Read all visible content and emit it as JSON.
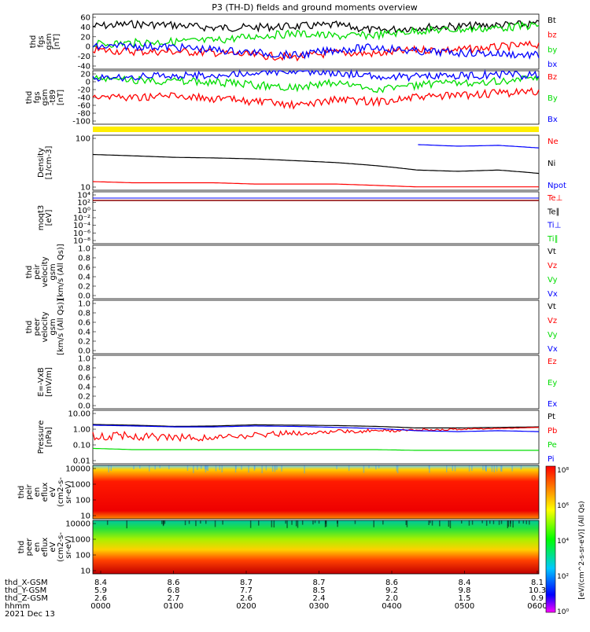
{
  "title": "P3 (TH-D) fields and ground moments overview",
  "colors": {
    "black": "#000000",
    "red": "#ff0000",
    "green": "#00dd00",
    "blue": "#0000ff",
    "yellow": "#ffee00"
  },
  "chart_data": [
    {
      "type": "line",
      "panel": "fgs",
      "ylabel": [
        "thd",
        "fgs",
        "gsm",
        "[nT]"
      ],
      "ylim": [
        -40,
        60
      ],
      "yticks": [
        "60",
        "40",
        "20",
        "0",
        "-20",
        "-40"
      ],
      "series": [
        {
          "name": "Bt",
          "color": "black",
          "values": [
            38,
            42,
            40,
            35,
            36,
            38,
            40,
            30,
            36,
            38,
            40,
            42
          ]
        },
        {
          "name": "bz",
          "color": "red",
          "values": [
            -5,
            -8,
            -8,
            -10,
            -15,
            -18,
            -10,
            -12,
            -5,
            -5,
            0,
            5
          ]
        },
        {
          "name": "by",
          "color": "green",
          "values": [
            5,
            8,
            10,
            12,
            20,
            25,
            20,
            22,
            30,
            32,
            35,
            40
          ]
        },
        {
          "name": "bx",
          "color": "blue",
          "values": [
            0,
            2,
            0,
            -5,
            -10,
            -15,
            -5,
            0,
            -8,
            -10,
            -12,
            -15
          ]
        }
      ]
    },
    {
      "type": "line",
      "panel": "fgs_gsm_t89",
      "ylabel": [
        "thd",
        "fgs",
        "gsm",
        "-t89",
        "[nT]"
      ],
      "ylim": [
        -110,
        20
      ],
      "yticks": [
        "20",
        "0",
        "-20",
        "-40",
        "-60",
        "-80",
        "-100"
      ],
      "series": [
        {
          "name": "Bz",
          "color": "red",
          "values": [
            -40,
            -45,
            -40,
            -48,
            -55,
            -65,
            -50,
            -55,
            -45,
            -40,
            -35,
            -30
          ]
        },
        {
          "name": "By",
          "color": "green",
          "values": [
            0,
            -2,
            -5,
            -8,
            -15,
            -20,
            -10,
            -25,
            -15,
            -10,
            -5,
            0
          ]
        },
        {
          "name": "Bx",
          "color": "blue",
          "values": [
            2,
            5,
            8,
            8,
            15,
            20,
            15,
            5,
            5,
            8,
            10,
            8
          ]
        }
      ]
    },
    {
      "type": "line",
      "panel": "density",
      "ylabel": [
        "Density",
        "[1/cm-3]"
      ],
      "ylim_log": [
        10,
        200
      ],
      "yticks": [
        "100",
        "10"
      ],
      "series": [
        {
          "name": "Ne",
          "color": "red",
          "values": [
            16,
            15,
            15,
            15,
            14,
            14,
            14,
            13,
            12,
            12,
            12,
            12
          ]
        },
        {
          "name": "Ni",
          "color": "black",
          "values": [
            70,
            65,
            60,
            58,
            55,
            50,
            45,
            38,
            30,
            28,
            30,
            25
          ]
        },
        {
          "name": "Npot",
          "color": "blue",
          "values": [
            null,
            null,
            null,
            null,
            null,
            null,
            null,
            null,
            120,
            110,
            115,
            100
          ]
        }
      ]
    },
    {
      "type": "line",
      "panel": "temperature",
      "ylabel": [
        "moqt3",
        "[eV]"
      ],
      "yticks": [
        "10⁴",
        "10²",
        "10⁰",
        "10⁻²",
        "10⁻⁴",
        "10⁻⁶",
        "10⁻⁸"
      ],
      "series": [
        {
          "name": "Te⊥",
          "color": "red"
        },
        {
          "name": "Te∥",
          "color": "black"
        },
        {
          "name": "Ti⊥",
          "color": "blue"
        },
        {
          "name": "Ti∥",
          "color": "green"
        }
      ]
    },
    {
      "type": "line",
      "panel": "peir_velocity",
      "ylabel": [
        "thd",
        "peir",
        "velocity",
        "gsm",
        "[km/s (All Qs)]"
      ],
      "ylim": [
        0,
        1
      ],
      "yticks": [
        "1.0",
        "0.8",
        "0.6",
        "0.4",
        "0.2",
        "0.0"
      ],
      "series": [
        {
          "name": "Vt",
          "color": "black"
        },
        {
          "name": "Vz",
          "color": "red"
        },
        {
          "name": "Vy",
          "color": "green"
        },
        {
          "name": "Vx",
          "color": "blue"
        }
      ]
    },
    {
      "type": "line",
      "panel": "peer_velocity",
      "ylabel": [
        "thd",
        "peer",
        "velocity",
        "gsm",
        "[km/s (All Qs)]"
      ],
      "ylim": [
        0,
        1
      ],
      "yticks": [
        "1.0",
        "0.8",
        "0.6",
        "0.4",
        "0.2",
        "0.0"
      ],
      "series": [
        {
          "name": "Vt",
          "color": "black"
        },
        {
          "name": "Vz",
          "color": "red"
        },
        {
          "name": "Vy",
          "color": "green"
        },
        {
          "name": "Vx",
          "color": "blue"
        }
      ]
    },
    {
      "type": "line",
      "panel": "efield",
      "ylabel": [
        "E=-VxB",
        "[mV/m]"
      ],
      "ylim": [
        0,
        1
      ],
      "yticks": [
        "1.0",
        "0.8",
        "0.6",
        "0.4",
        "0.2",
        "0.0"
      ],
      "series": [
        {
          "name": "Ez",
          "color": "red"
        },
        {
          "name": "Ey",
          "color": "green"
        },
        {
          "name": "Ex",
          "color": "blue"
        }
      ]
    },
    {
      "type": "line",
      "panel": "pressure",
      "ylabel": [
        "Pressure",
        "[nPa]"
      ],
      "yticks": [
        "10.00",
        "1.00",
        "0.10",
        "0.01"
      ],
      "series": [
        {
          "name": "Pt",
          "color": "black",
          "values": [
            2.0,
            1.8,
            1.5,
            1.6,
            1.9,
            1.8,
            1.7,
            1.5,
            1.2,
            1.2,
            1.3,
            1.4
          ]
        },
        {
          "name": "Pb",
          "color": "red",
          "values": [
            0.4,
            0.35,
            0.3,
            0.3,
            0.4,
            0.6,
            0.7,
            0.8,
            0.9,
            1.0,
            1.1,
            1.3
          ]
        },
        {
          "name": "Pe",
          "color": "green",
          "values": [
            0.06,
            0.05,
            0.05,
            0.05,
            0.05,
            0.05,
            0.05,
            0.05,
            0.045,
            0.045,
            0.045,
            0.045
          ]
        },
        {
          "name": "Pi",
          "color": "blue",
          "values": [
            1.8,
            1.6,
            1.4,
            1.4,
            1.6,
            1.5,
            1.3,
            1.1,
            0.8,
            0.7,
            0.8,
            0.7
          ]
        }
      ]
    },
    {
      "type": "heatmap",
      "panel": "peir_en_eflux",
      "ylabel": [
        "thd",
        "peir",
        "en",
        "eflux",
        "eV",
        "(cm2-s-",
        "sr-eV)"
      ],
      "yticks": [
        "10000",
        "1000",
        "100",
        "10"
      ]
    },
    {
      "type": "heatmap",
      "panel": "peer_en_eflux",
      "ylabel": [
        "thd",
        "peer",
        "en",
        "eflux",
        "eV",
        "(cm2-s-",
        "sr-eV)"
      ],
      "yticks": [
        "10000",
        "1000",
        "100",
        "10"
      ]
    }
  ],
  "colorbar": {
    "label": "[eV/(cm^2-s-sr-eV)] (All Qs)",
    "ticks": [
      "10⁸",
      "10⁶",
      "10⁴",
      "10²",
      "10⁰"
    ]
  },
  "xaxis": {
    "rows": [
      {
        "label": "thd_X-GSM",
        "values": [
          "8.4",
          "8.6",
          "8.7",
          "8.7",
          "8.6",
          "8.4",
          "8.1"
        ]
      },
      {
        "label": "thd_Y-GSM",
        "values": [
          "5.9",
          "6.8",
          "7.7",
          "8.5",
          "9.2",
          "9.8",
          "10.3"
        ]
      },
      {
        "label": "thd_Z-GSM",
        "values": [
          "2.6",
          "2.7",
          "2.6",
          "2.4",
          "2.0",
          "1.5",
          "0.9"
        ]
      },
      {
        "label": "hhmm",
        "values": [
          "0000",
          "0100",
          "0200",
          "0300",
          "0400",
          "0500",
          "0600"
        ]
      }
    ],
    "date": "2021 Dec 13"
  }
}
